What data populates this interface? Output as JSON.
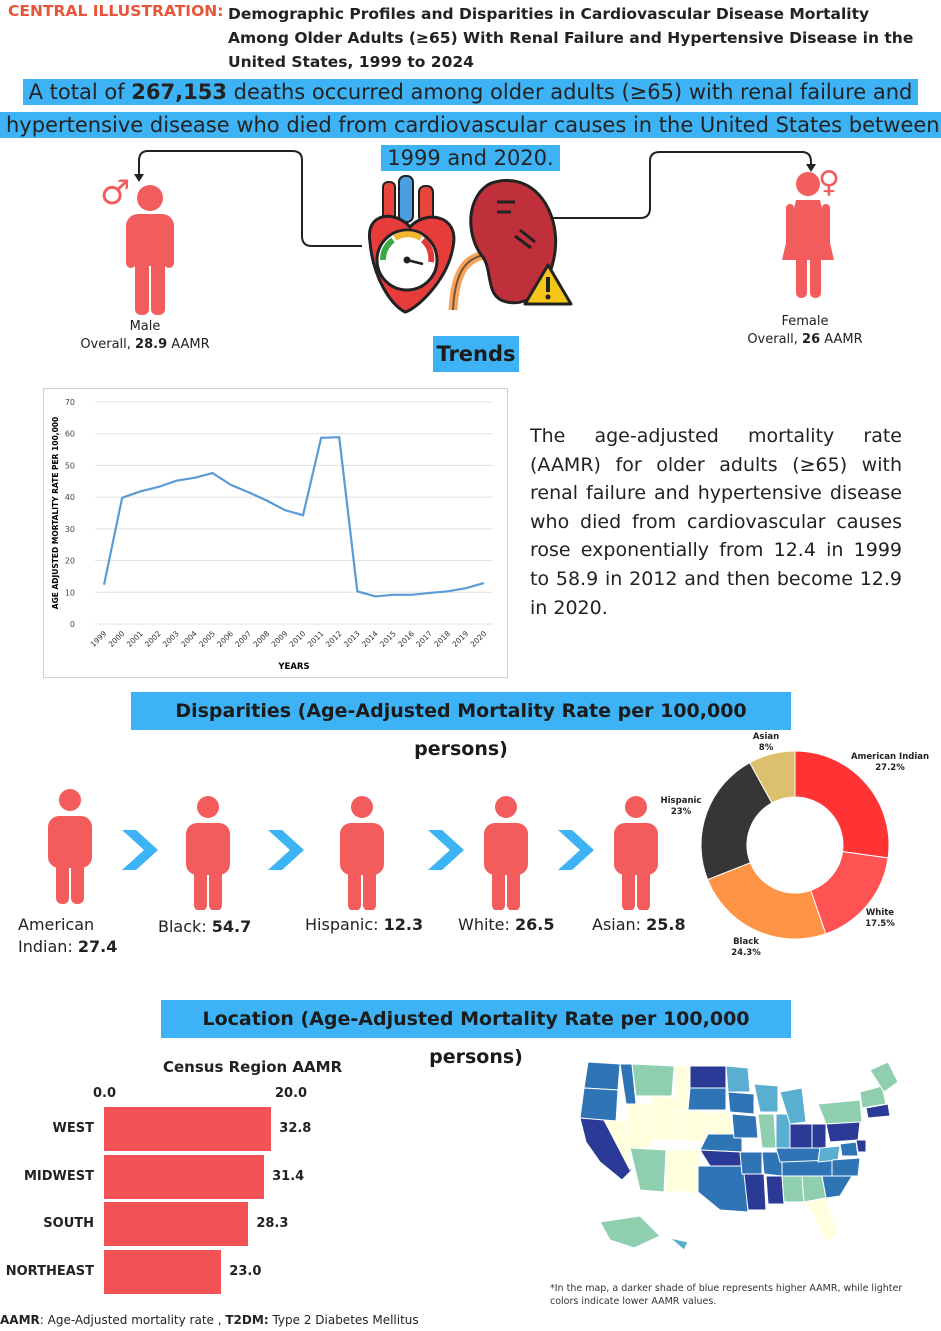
{
  "header": {
    "label": "CENTRAL ILLUSTRATION:",
    "title": "Demographic Profiles and Disparities in Cardiovascular Disease Mortality Among Older Adults (≥65) With Renal Failure and Hypertensive Disease in the United States, 1999 to 2024"
  },
  "banner": {
    "pre": "A total of ",
    "count": "267,153",
    "post": " deaths occurred among older adults (≥65) with renal failure and hypertensive disease who died from cardiovascular causes in the United States between 1999 and 2020."
  },
  "sex": {
    "male": {
      "label": "Male",
      "prefix": "Overall,",
      "value": "28.9",
      "unit": "AAMR",
      "symbol": "♂"
    },
    "female": {
      "label": "Female",
      "prefix": "Overall,",
      "value": "26",
      "unit": "AAMR",
      "symbol": "♀"
    }
  },
  "colors": {
    "accent": "#3db3f5",
    "figure": "#f25c5c",
    "line": "#5b9bd5",
    "bar": "#f55257",
    "header": "#e8553b"
  },
  "trends": {
    "title": "Trends",
    "description": "The age-adjusted mortality rate (AAMR) for older adults (≥65) with renal failure and hypertensive disease who died from cardiovascular causes rose exponentially from 12.4 in 1999 to 58.9 in 2012 and then become 12.9 in 2020."
  },
  "disparities": {
    "title": "Disparities (Age-Adjusted Mortality Rate per 100,000 persons)",
    "groups": [
      {
        "name": "American Indian:",
        "value": "27.4"
      },
      {
        "name": "Black:",
        "value": "54.7"
      },
      {
        "name": "Hispanic:",
        "value": "12.3"
      },
      {
        "name": "White:",
        "value": "26.5"
      },
      {
        "name": "Asian:",
        "value": "25.8"
      }
    ]
  },
  "location": {
    "title": "Location (Age-Adjusted Mortality Rate per 100,000 persons)",
    "map_note": "*In the map, a darker shade of blue represents higher AAMR, while lighter colors indicate lower AAMR values."
  },
  "footer": {
    "aamr_key": "AAMR",
    "aamr_def": ": Age-Adjusted mortality rate ,",
    "t2dm_key": "T2DM:",
    "t2dm_def": " Type 2 Diabetes Mellitus"
  },
  "chart_data": [
    {
      "type": "line",
      "title": "",
      "xlabel": "YEARS",
      "ylabel": "AGE ADJUSTED MORTALITY RATE PER 100,000",
      "ylim": [
        0,
        70
      ],
      "yticks": [
        0,
        10,
        20,
        30,
        40,
        50,
        60,
        70
      ],
      "grid": true,
      "x": [
        "1999",
        "2000",
        "2001",
        "2002",
        "2003",
        "2004",
        "2005",
        "2006",
        "2007",
        "2008",
        "2009",
        "2010",
        "2011",
        "2012",
        "2013",
        "2014",
        "2015",
        "2016",
        "2017",
        "2018",
        "2019",
        "2020"
      ],
      "series": [
        {
          "name": "AAMR",
          "values": [
            12.4,
            39.8,
            41.8,
            43.2,
            45.2,
            46.1,
            47.6,
            43.9,
            41.5,
            38.9,
            35.9,
            34.3,
            58.7,
            58.9,
            10.3,
            8.7,
            9.2,
            9.2,
            9.8,
            10.3,
            11.3,
            12.9
          ]
        }
      ]
    },
    {
      "type": "pie",
      "title": "",
      "categories": [
        "American Indian",
        "White",
        "Black",
        "Hispanic",
        "Asian"
      ],
      "values": [
        27.2,
        17.5,
        24.3,
        23,
        8
      ],
      "labels": [
        "27.2%",
        "17.5%",
        "24.3%",
        "23%",
        "8%"
      ],
      "colors": [
        "#ff3333",
        "#ff5252",
        "#ff9447",
        "#363636",
        "#dcc06e"
      ]
    },
    {
      "type": "bar",
      "title": "Census Region AAMR",
      "categories": [
        "WEST",
        "MIDWEST",
        "SOUTH",
        "NORTHEAST"
      ],
      "values": [
        32.8,
        31.4,
        28.3,
        23.0
      ],
      "labels": [
        "32.8",
        "31.4",
        "28.3",
        "23.0"
      ],
      "xticks": [
        "0.0",
        "20.0"
      ],
      "xlim": [
        0,
        20
      ]
    }
  ]
}
